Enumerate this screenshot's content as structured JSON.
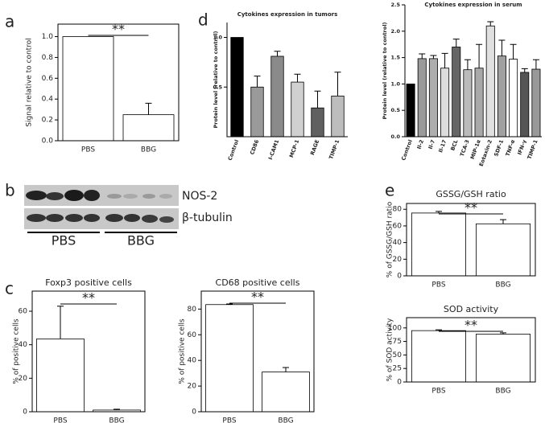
{
  "panel_labels": [
    "a",
    "b",
    "c",
    "d",
    "e"
  ],
  "blot": {
    "bands": [
      "NOS-2",
      "β-tubulin"
    ],
    "groups": [
      "PBS",
      "BBG"
    ]
  },
  "chart_data": [
    {
      "type": "bar",
      "ylabel": "Signal relative to control",
      "annotation": "**",
      "categories": [
        "PBS",
        "BBG"
      ],
      "values": [
        1.0,
        0.25
      ],
      "errors": [
        null,
        0.11
      ],
      "colors": [
        "#ffffff",
        "#ffffff"
      ],
      "ylim": [
        0,
        1.12
      ],
      "yticks": [
        {
          "value": 0,
          "label": "0.0"
        },
        0.2,
        0.4,
        0.6,
        0.8,
        {
          "value": 1,
          "label": "1.0"
        }
      ]
    },
    {
      "type": "bar",
      "title": "Cytokines expression in tumors",
      "ylabel": "Protein level (relative to control)",
      "categories": [
        "Control",
        "CD86",
        "I-CAM1",
        "MCP-1",
        "RAGE",
        "TIMP-1"
      ],
      "values": [
        1.0,
        0.5,
        0.81,
        0.55,
        0.29,
        0.41
      ],
      "errors": [
        null,
        0.11,
        0.05,
        0.08,
        0.17,
        0.24
      ],
      "colors": [
        "#000000",
        "#9a9a9a",
        "#8a8a8a",
        "#d0d0d0",
        "#606060",
        "#bdbdbd"
      ],
      "ylim": [
        0,
        1.15
      ],
      "yticks": [
        0.5,
        {
          "value": 1,
          "label": "1.0"
        }
      ]
    },
    {
      "type": "bar",
      "title": "Cytokines expression in serum",
      "ylabel": "Protein level (relative to control)",
      "categories": [
        "Control",
        "Il-2",
        "Il-7",
        "Il-17",
        "BCL",
        "TCA-3",
        "MIP-1α",
        "Eotaxin-2",
        "SDF-1",
        "TNF-α",
        "IFN-γ",
        "TIMP-1"
      ],
      "values": [
        1.0,
        1.48,
        1.48,
        1.3,
        1.7,
        1.27,
        1.3,
        2.1,
        1.53,
        1.47,
        1.22,
        1.28
      ],
      "errors": [
        null,
        0.09,
        0.06,
        0.28,
        0.15,
        0.19,
        0.45,
        0.08,
        0.3,
        0.28,
        0.07,
        0.18
      ],
      "colors": [
        "#000000",
        "#9a9a9a",
        "#adadad",
        "#dddddd",
        "#666666",
        "#bbbbbb",
        "#a8a8a8",
        "#e0e0e0",
        "#a0a0a0",
        "#ffffff",
        "#555555",
        "#999999"
      ],
      "ylim": [
        0,
        2.5
      ],
      "yticks": [
        {
          "value": 0,
          "label": "0.0"
        },
        0.5,
        {
          "value": 1,
          "label": "1.0"
        },
        1.5,
        {
          "value": 2,
          "label": "2.0"
        },
        2.5
      ]
    },
    {
      "type": "bar",
      "title": "Foxp3 positive cells",
      "ylabel": "% of positive cells",
      "annotation": "**",
      "categories": [
        "PBS",
        "BBG"
      ],
      "values": [
        43.5,
        1
      ],
      "errors": [
        19.5,
        0.5
      ],
      "colors": [
        "#ffffff",
        "#ffffff"
      ],
      "ylim": [
        0,
        72
      ],
      "yticks": [
        0,
        20,
        40,
        60
      ]
    },
    {
      "type": "bar",
      "title": "CD68 positive cells",
      "ylabel": "% of positive cells",
      "annotation": "**",
      "categories": [
        "PBS",
        "BBG"
      ],
      "values": [
        83.5,
        31
      ],
      "errors": [
        0.5,
        3.5
      ],
      "colors": [
        "#ffffff",
        "#ffffff"
      ],
      "ylim": [
        0,
        94
      ],
      "yticks": [
        0,
        20,
        40,
        60,
        80
      ]
    },
    {
      "type": "bar",
      "title": "GSSG/GSH ratio",
      "ylabel": "% of GSSG/GSH ratio",
      "annotation": "**",
      "categories": [
        "PBS",
        "BBG"
      ],
      "values": [
        75.5,
        62.5
      ],
      "errors": [
        2,
        5
      ],
      "colors": [
        "#ffffff",
        "#ffffff"
      ],
      "ylim": [
        0,
        87
      ],
      "yticks": [
        0,
        20,
        40,
        60,
        80
      ]
    },
    {
      "type": "bar",
      "title": "SOD activity",
      "ylabel": "% of SOD activity",
      "annotation": "**",
      "categories": [
        "PBS",
        "BBG"
      ],
      "values": [
        95,
        88.5
      ],
      "errors": [
        1.5,
        2.5
      ],
      "colors": [
        "#ffffff",
        "#ffffff"
      ],
      "ylim": [
        0,
        119
      ],
      "yticks": [
        0,
        25,
        50,
        75,
        100
      ]
    }
  ]
}
